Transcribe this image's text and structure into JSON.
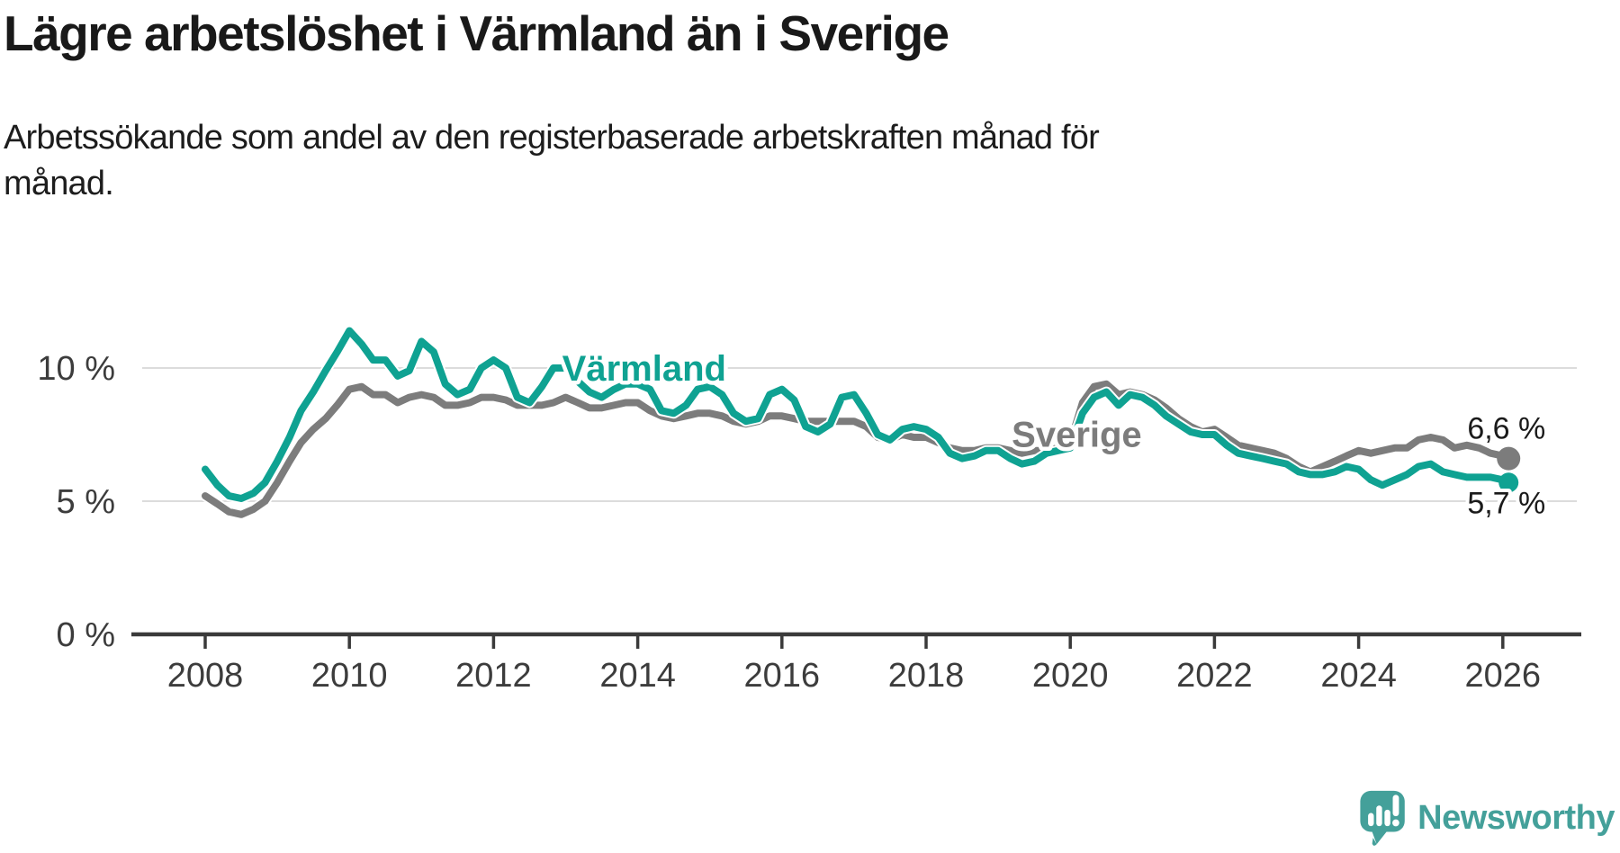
{
  "header": {
    "title": "Lägre arbetslöshet i Värmland än i Sverige",
    "subtitle": "Arbetssökande som andel av den registerbaserade arbetskraften månad för månad."
  },
  "branding": {
    "logo_text": "Newsworthy",
    "logo_icon": "newsworthy-speech-bubble-bar-chart-icon",
    "color": "#44a09a"
  },
  "chart_data": {
    "type": "line",
    "title": "Lägre arbetslöshet i Värmland än i Sverige",
    "subtitle": "Arbetssökande som andel av den registerbaserade arbetskraften månad för månad.",
    "x_unit": "year (monthly data)",
    "xlim": [
      2007.03,
      2027.06
    ],
    "ylim": [
      0,
      12.5
    ],
    "grid": true,
    "gridline_values": [
      5,
      10
    ],
    "x_ticks": [
      {
        "value": 2008,
        "label": "2008"
      },
      {
        "value": 2010,
        "label": "2010"
      },
      {
        "value": 2012,
        "label": "2012"
      },
      {
        "value": 2014,
        "label": "2014"
      },
      {
        "value": 2016,
        "label": "2016"
      },
      {
        "value": 2018,
        "label": "2018"
      },
      {
        "value": 2020,
        "label": "2020"
      },
      {
        "value": 2022,
        "label": "2022"
      },
      {
        "value": 2024,
        "label": "2024"
      },
      {
        "value": 2026,
        "label": "2026"
      }
    ],
    "y_ticks": [
      {
        "value": 0,
        "label": "0 %"
      },
      {
        "value": 5,
        "label": "5 %"
      },
      {
        "value": 10,
        "label": "10 %"
      }
    ],
    "colors": {
      "grid": "#dcdcdc",
      "axis": "#3a3a3a",
      "tick_text": "#3c3c3c",
      "value_label_text": "#1a1a1a"
    },
    "series": [
      {
        "name": "Sverige",
        "color": "#7c7c7c",
        "line_width": 8,
        "label_anchor": {
          "x": 2020.09,
          "y": 7.05
        },
        "end_dot": {
          "x": 2026.08,
          "y": 6.6,
          "radius": 13
        },
        "end_label": {
          "text": "6,6 %",
          "x": 2026.05,
          "y": 7.35
        },
        "points": [
          [
            2008,
            5.2
          ],
          [
            2008.17,
            4.9
          ],
          [
            2008.33,
            4.6
          ],
          [
            2008.5,
            4.5
          ],
          [
            2008.67,
            4.7
          ],
          [
            2008.83,
            5.0
          ],
          [
            2009,
            5.7
          ],
          [
            2009.17,
            6.5
          ],
          [
            2009.33,
            7.2
          ],
          [
            2009.5,
            7.7
          ],
          [
            2009.67,
            8.1
          ],
          [
            2009.83,
            8.6
          ],
          [
            2010,
            9.2
          ],
          [
            2010.17,
            9.3
          ],
          [
            2010.33,
            9.0
          ],
          [
            2010.5,
            9.0
          ],
          [
            2010.67,
            8.7
          ],
          [
            2010.83,
            8.9
          ],
          [
            2011,
            9.0
          ],
          [
            2011.17,
            8.9
          ],
          [
            2011.33,
            8.6
          ],
          [
            2011.5,
            8.6
          ],
          [
            2011.67,
            8.7
          ],
          [
            2011.83,
            8.9
          ],
          [
            2012,
            8.9
          ],
          [
            2012.17,
            8.8
          ],
          [
            2012.33,
            8.6
          ],
          [
            2012.5,
            8.6
          ],
          [
            2012.67,
            8.6
          ],
          [
            2012.83,
            8.7
          ],
          [
            2013,
            8.9
          ],
          [
            2013.17,
            8.7
          ],
          [
            2013.33,
            8.5
          ],
          [
            2013.5,
            8.5
          ],
          [
            2013.67,
            8.6
          ],
          [
            2013.83,
            8.7
          ],
          [
            2014,
            8.7
          ],
          [
            2014.17,
            8.4
          ],
          [
            2014.33,
            8.2
          ],
          [
            2014.5,
            8.1
          ],
          [
            2014.67,
            8.2
          ],
          [
            2014.83,
            8.3
          ],
          [
            2015,
            8.3
          ],
          [
            2015.17,
            8.2
          ],
          [
            2015.33,
            8.0
          ],
          [
            2015.5,
            7.9
          ],
          [
            2015.67,
            8.0
          ],
          [
            2015.83,
            8.2
          ],
          [
            2016,
            8.2
          ],
          [
            2016.17,
            8.1
          ],
          [
            2016.33,
            8.0
          ],
          [
            2016.5,
            8.0
          ],
          [
            2016.67,
            8.0
          ],
          [
            2016.83,
            8.0
          ],
          [
            2017,
            8.0
          ],
          [
            2017.17,
            7.8
          ],
          [
            2017.33,
            7.4
          ],
          [
            2017.5,
            7.3
          ],
          [
            2017.67,
            7.5
          ],
          [
            2017.83,
            7.4
          ],
          [
            2018,
            7.4
          ],
          [
            2018.17,
            7.2
          ],
          [
            2018.33,
            7.0
          ],
          [
            2018.5,
            6.9
          ],
          [
            2018.67,
            6.9
          ],
          [
            2018.83,
            7.0
          ],
          [
            2019,
            7.0
          ],
          [
            2019.17,
            6.9
          ],
          [
            2019.33,
            6.8
          ],
          [
            2019.5,
            6.9
          ],
          [
            2019.67,
            6.9
          ],
          [
            2019.83,
            7.0
          ],
          [
            2020,
            7.2
          ],
          [
            2020.17,
            8.7
          ],
          [
            2020.33,
            9.3
          ],
          [
            2020.5,
            9.4
          ],
          [
            2020.67,
            9.0
          ],
          [
            2020.83,
            9.1
          ],
          [
            2021,
            9.0
          ],
          [
            2021.17,
            8.8
          ],
          [
            2021.33,
            8.5
          ],
          [
            2021.5,
            8.1
          ],
          [
            2021.67,
            7.8
          ],
          [
            2021.83,
            7.6
          ],
          [
            2022,
            7.7
          ],
          [
            2022.17,
            7.4
          ],
          [
            2022.33,
            7.1
          ],
          [
            2022.5,
            7.0
          ],
          [
            2022.67,
            6.9
          ],
          [
            2022.83,
            6.8
          ],
          [
            2023,
            6.6
          ],
          [
            2023.17,
            6.3
          ],
          [
            2023.33,
            6.1
          ],
          [
            2023.5,
            6.3
          ],
          [
            2023.67,
            6.5
          ],
          [
            2023.83,
            6.7
          ],
          [
            2024,
            6.9
          ],
          [
            2024.17,
            6.8
          ],
          [
            2024.33,
            6.9
          ],
          [
            2024.5,
            7.0
          ],
          [
            2024.67,
            7.0
          ],
          [
            2024.83,
            7.3
          ],
          [
            2025,
            7.4
          ],
          [
            2025.17,
            7.3
          ],
          [
            2025.33,
            7.0
          ],
          [
            2025.5,
            7.1
          ],
          [
            2025.67,
            7.0
          ],
          [
            2025.83,
            6.8
          ],
          [
            2026,
            6.7
          ],
          [
            2026.08,
            6.6
          ]
        ]
      },
      {
        "name": "Värmland",
        "color": "#0fa292",
        "line_width": 8,
        "label_anchor": {
          "x": 2014.09,
          "y": 9.53
        },
        "end_dot": {
          "x": 2026.08,
          "y": 5.7,
          "radius": 11
        },
        "end_label": {
          "text": "5,7 %",
          "x": 2026.05,
          "y": 4.55
        },
        "points": [
          [
            2008,
            6.2
          ],
          [
            2008.17,
            5.6
          ],
          [
            2008.33,
            5.2
          ],
          [
            2008.5,
            5.1
          ],
          [
            2008.67,
            5.3
          ],
          [
            2008.83,
            5.7
          ],
          [
            2009,
            6.5
          ],
          [
            2009.17,
            7.4
          ],
          [
            2009.33,
            8.4
          ],
          [
            2009.5,
            9.1
          ],
          [
            2009.67,
            9.9
          ],
          [
            2009.83,
            10.6
          ],
          [
            2010,
            11.4
          ],
          [
            2010.17,
            10.9
          ],
          [
            2010.33,
            10.3
          ],
          [
            2010.5,
            10.3
          ],
          [
            2010.67,
            9.7
          ],
          [
            2010.83,
            9.9
          ],
          [
            2011,
            11.0
          ],
          [
            2011.17,
            10.6
          ],
          [
            2011.33,
            9.4
          ],
          [
            2011.5,
            9.0
          ],
          [
            2011.67,
            9.2
          ],
          [
            2011.83,
            10.0
          ],
          [
            2012,
            10.3
          ],
          [
            2012.17,
            10.0
          ],
          [
            2012.33,
            8.9
          ],
          [
            2012.5,
            8.7
          ],
          [
            2012.67,
            9.3
          ],
          [
            2012.83,
            10.0
          ],
          [
            2013,
            10.0
          ],
          [
            2013.17,
            9.5
          ],
          [
            2013.33,
            9.1
          ],
          [
            2013.5,
            8.9
          ],
          [
            2013.67,
            9.2
          ],
          [
            2013.83,
            9.4
          ],
          [
            2014,
            9.4
          ],
          [
            2014.17,
            9.2
          ],
          [
            2014.33,
            8.4
          ],
          [
            2014.5,
            8.3
          ],
          [
            2014.67,
            8.6
          ],
          [
            2014.83,
            9.2
          ],
          [
            2015,
            9.3
          ],
          [
            2015.17,
            9.0
          ],
          [
            2015.33,
            8.3
          ],
          [
            2015.5,
            8.0
          ],
          [
            2015.67,
            8.1
          ],
          [
            2015.83,
            9.0
          ],
          [
            2016,
            9.2
          ],
          [
            2016.17,
            8.8
          ],
          [
            2016.33,
            7.8
          ],
          [
            2016.5,
            7.6
          ],
          [
            2016.67,
            7.9
          ],
          [
            2016.83,
            8.9
          ],
          [
            2017,
            9.0
          ],
          [
            2017.17,
            8.3
          ],
          [
            2017.33,
            7.5
          ],
          [
            2017.5,
            7.3
          ],
          [
            2017.67,
            7.7
          ],
          [
            2017.83,
            7.8
          ],
          [
            2018,
            7.7
          ],
          [
            2018.17,
            7.4
          ],
          [
            2018.33,
            6.8
          ],
          [
            2018.5,
            6.6
          ],
          [
            2018.67,
            6.7
          ],
          [
            2018.83,
            6.9
          ],
          [
            2019,
            6.9
          ],
          [
            2019.17,
            6.6
          ],
          [
            2019.33,
            6.4
          ],
          [
            2019.5,
            6.5
          ],
          [
            2019.67,
            6.8
          ],
          [
            2019.83,
            6.9
          ],
          [
            2020,
            7.0
          ],
          [
            2020.17,
            8.3
          ],
          [
            2020.33,
            8.9
          ],
          [
            2020.5,
            9.1
          ],
          [
            2020.67,
            8.6
          ],
          [
            2020.83,
            9.0
          ],
          [
            2021,
            8.9
          ],
          [
            2021.17,
            8.6
          ],
          [
            2021.33,
            8.2
          ],
          [
            2021.5,
            7.9
          ],
          [
            2021.67,
            7.6
          ],
          [
            2021.83,
            7.5
          ],
          [
            2022,
            7.5
          ],
          [
            2022.17,
            7.1
          ],
          [
            2022.33,
            6.8
          ],
          [
            2022.5,
            6.7
          ],
          [
            2022.67,
            6.6
          ],
          [
            2022.83,
            6.5
          ],
          [
            2023,
            6.4
          ],
          [
            2023.17,
            6.1
          ],
          [
            2023.33,
            6.0
          ],
          [
            2023.5,
            6.0
          ],
          [
            2023.67,
            6.1
          ],
          [
            2023.83,
            6.3
          ],
          [
            2024,
            6.2
          ],
          [
            2024.17,
            5.8
          ],
          [
            2024.33,
            5.6
          ],
          [
            2024.5,
            5.8
          ],
          [
            2024.67,
            6.0
          ],
          [
            2024.83,
            6.3
          ],
          [
            2025,
            6.4
          ],
          [
            2025.17,
            6.1
          ],
          [
            2025.33,
            6.0
          ],
          [
            2025.5,
            5.9
          ],
          [
            2025.67,
            5.9
          ],
          [
            2025.83,
            5.9
          ],
          [
            2026,
            5.8
          ],
          [
            2026.08,
            5.7
          ]
        ]
      }
    ]
  }
}
